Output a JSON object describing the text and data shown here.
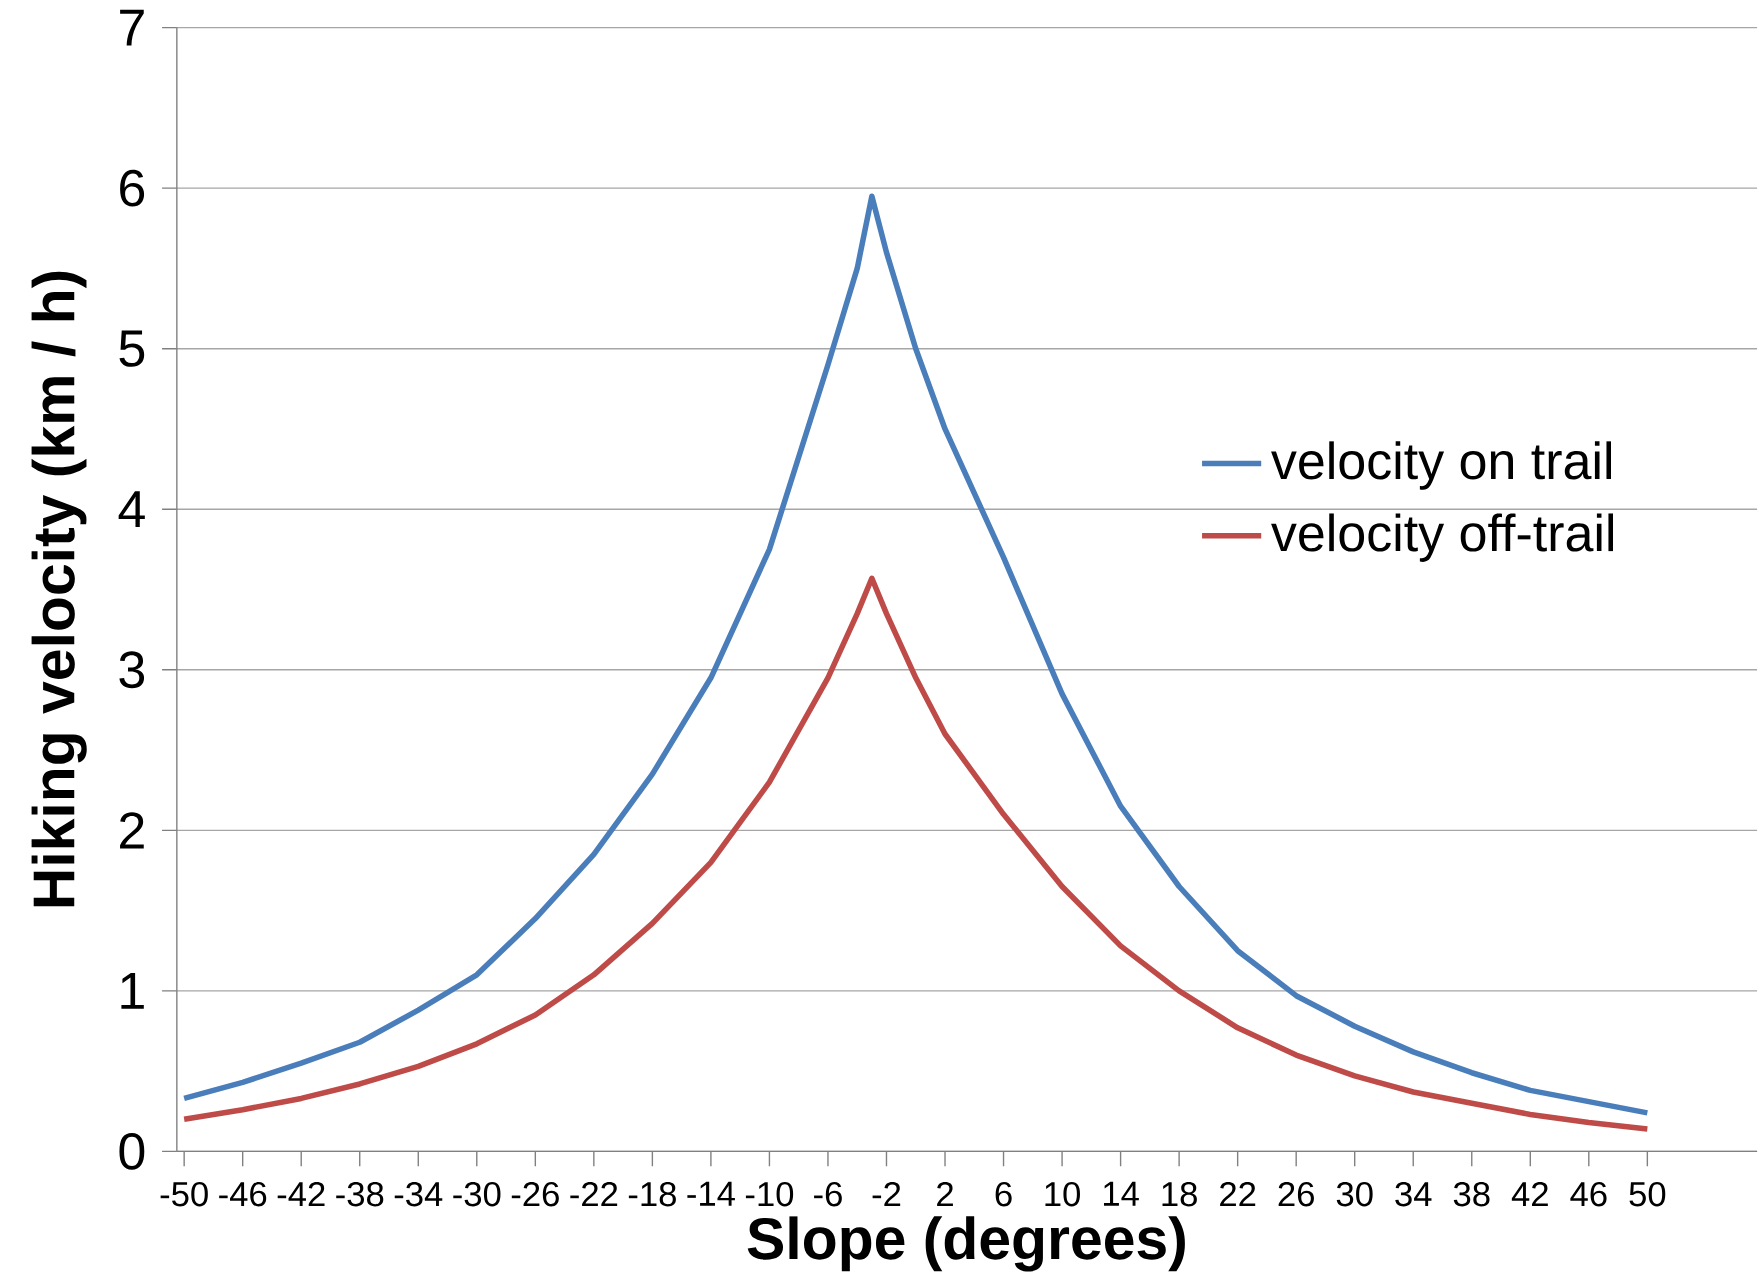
{
  "chart_data": {
    "type": "line",
    "xlabel": "Slope (degrees)",
    "ylabel": "Hiking velocity (km / h)",
    "x": [
      -50,
      -46,
      -42,
      -38,
      -34,
      -30,
      -26,
      -22,
      -18,
      -14,
      -10,
      -6,
      -4,
      -3,
      -2,
      0,
      2,
      6,
      10,
      14,
      18,
      22,
      26,
      30,
      34,
      38,
      42,
      46,
      50
    ],
    "series": [
      {
        "name": "velocity on trail",
        "color": "#4a7ebb",
        "values": [
          0.33,
          0.43,
          0.55,
          0.68,
          0.88,
          1.1,
          1.45,
          1.85,
          2.35,
          2.95,
          3.75,
          4.9,
          5.5,
          5.95,
          5.6,
          5.0,
          4.5,
          3.7,
          2.85,
          2.15,
          1.65,
          1.25,
          0.97,
          0.78,
          0.62,
          0.49,
          0.38,
          0.31,
          0.24
        ]
      },
      {
        "name": "velocity off-trail",
        "color": "#be4b48",
        "values": [
          0.2,
          0.26,
          0.33,
          0.42,
          0.53,
          0.67,
          0.85,
          1.1,
          1.42,
          1.8,
          2.3,
          2.95,
          3.35,
          3.57,
          3.35,
          2.95,
          2.6,
          2.1,
          1.65,
          1.28,
          1.0,
          0.77,
          0.6,
          0.47,
          0.37,
          0.3,
          0.23,
          0.18,
          0.14
        ]
      }
    ],
    "xlim": [
      -50.5,
      57.5
    ],
    "xticks": [
      -50,
      -46,
      -42,
      -38,
      -34,
      -30,
      -26,
      -22,
      -18,
      -14,
      -10,
      -6,
      -2,
      2,
      6,
      10,
      14,
      18,
      22,
      26,
      30,
      34,
      38,
      42,
      46,
      50
    ],
    "ylim": [
      0,
      7
    ],
    "yticks": [
      0,
      1,
      2,
      3,
      4,
      5,
      6,
      7
    ],
    "grid": "y",
    "legend": "right",
    "marker": "none",
    "line_style": "solid"
  }
}
